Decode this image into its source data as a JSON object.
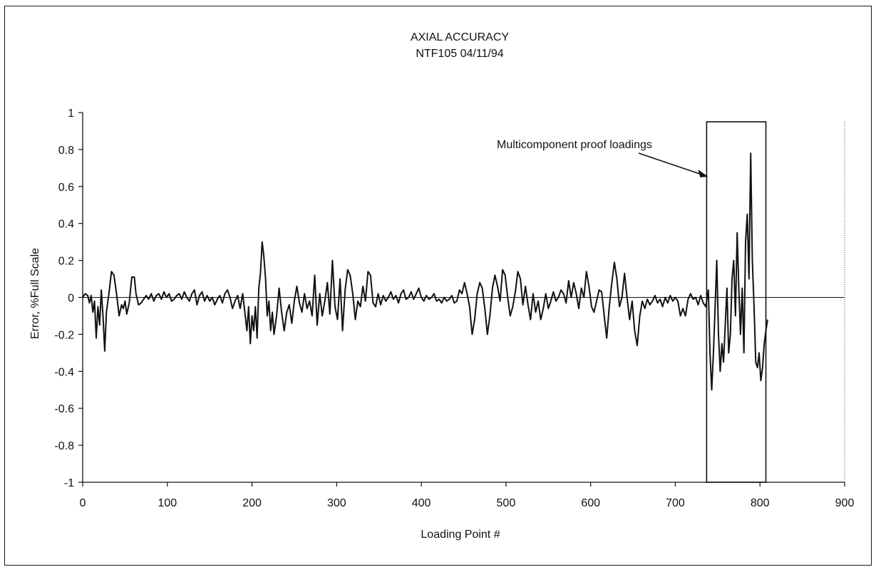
{
  "chart_data": {
    "type": "line",
    "title": "AXIAL ACCURACY",
    "subtitle": "NTF105 04/11/94",
    "xlabel": "Loading Point #",
    "ylabel": "Error, %Full Scale",
    "xlim": [
      0,
      900
    ],
    "ylim": [
      -1,
      1
    ],
    "x_ticks": [
      0,
      100,
      200,
      300,
      400,
      500,
      600,
      700,
      800,
      900
    ],
    "y_ticks": [
      1,
      0.8,
      0.6,
      0.4,
      0.2,
      0,
      -0.2,
      -0.4,
      -0.6,
      -0.8,
      -1
    ],
    "y_tick_labels": [
      "1",
      "0.8",
      "0.6",
      "0.4",
      "0.2",
      "0",
      "-0.2",
      "-0.4",
      "-0.6",
      "-0.8",
      "-1"
    ],
    "grid": false,
    "annotation": {
      "text": "Multicomponent proof loadings",
      "box_x_range": [
        737,
        807
      ],
      "box_y_range": [
        -1,
        0.95
      ]
    },
    "series": [
      {
        "points": [
          [
            0,
            0
          ],
          [
            3,
            0.02
          ],
          [
            6,
            0.01
          ],
          [
            8,
            -0.03
          ],
          [
            10,
            0.01
          ],
          [
            12,
            -0.08
          ],
          [
            14,
            -0.02
          ],
          [
            16,
            -0.22
          ],
          [
            18,
            -0.05
          ],
          [
            20,
            -0.15
          ],
          [
            22,
            0.04
          ],
          [
            24,
            -0.1
          ],
          [
            26,
            -0.29
          ],
          [
            28,
            -0.08
          ],
          [
            31,
            0.02
          ],
          [
            34,
            0.14
          ],
          [
            37,
            0.12
          ],
          [
            40,
            0.02
          ],
          [
            43,
            -0.1
          ],
          [
            46,
            -0.04
          ],
          [
            48,
            -0.06
          ],
          [
            50,
            -0.02
          ],
          [
            52,
            -0.09
          ],
          [
            55,
            -0.03
          ],
          [
            58,
            0.11
          ],
          [
            61,
            0.11
          ],
          [
            63,
            0.02
          ],
          [
            66,
            -0.04
          ],
          [
            69,
            -0.03
          ],
          [
            72,
            -0.01
          ],
          [
            75,
            0.01
          ],
          [
            78,
            -0.01
          ],
          [
            81,
            0.02
          ],
          [
            84,
            -0.02
          ],
          [
            87,
            0.01
          ],
          [
            90,
            0.02
          ],
          [
            93,
            -0.01
          ],
          [
            96,
            0.03
          ],
          [
            99,
            0.0
          ],
          [
            102,
            0.02
          ],
          [
            105,
            -0.02
          ],
          [
            108,
            -0.01
          ],
          [
            111,
            0.01
          ],
          [
            114,
            0.02
          ],
          [
            117,
            -0.01
          ],
          [
            120,
            0.03
          ],
          [
            123,
            0.0
          ],
          [
            126,
            -0.02
          ],
          [
            129,
            0.02
          ],
          [
            132,
            0.04
          ],
          [
            135,
            -0.04
          ],
          [
            138,
            0.01
          ],
          [
            141,
            0.03
          ],
          [
            144,
            -0.02
          ],
          [
            147,
            0.01
          ],
          [
            150,
            -0.02
          ],
          [
            153,
            0.0
          ],
          [
            156,
            -0.04
          ],
          [
            159,
            -0.01
          ],
          [
            162,
            0.01
          ],
          [
            165,
            -0.03
          ],
          [
            168,
            0.02
          ],
          [
            171,
            0.04
          ],
          [
            174,
            0.0
          ],
          [
            177,
            -0.06
          ],
          [
            180,
            -0.02
          ],
          [
            183,
            0.01
          ],
          [
            186,
            -0.06
          ],
          [
            189,
            0.02
          ],
          [
            192,
            -0.1
          ],
          [
            194,
            -0.18
          ],
          [
            196,
            -0.05
          ],
          [
            198,
            -0.25
          ],
          [
            200,
            -0.1
          ],
          [
            202,
            -0.18
          ],
          [
            204,
            -0.05
          ],
          [
            206,
            -0.22
          ],
          [
            208,
            0.05
          ],
          [
            210,
            0.13
          ],
          [
            212,
            0.3
          ],
          [
            214,
            0.22
          ],
          [
            216,
            0.1
          ],
          [
            218,
            -0.1
          ],
          [
            220,
            -0.02
          ],
          [
            222,
            -0.18
          ],
          [
            224,
            -0.08
          ],
          [
            226,
            -0.2
          ],
          [
            229,
            -0.1
          ],
          [
            232,
            0.05
          ],
          [
            235,
            -0.08
          ],
          [
            238,
            -0.18
          ],
          [
            241,
            -0.08
          ],
          [
            244,
            -0.04
          ],
          [
            247,
            -0.14
          ],
          [
            250,
            -0.02
          ],
          [
            253,
            0.06
          ],
          [
            256,
            -0.03
          ],
          [
            259,
            -0.08
          ],
          [
            262,
            0.02
          ],
          [
            265,
            -0.06
          ],
          [
            268,
            -0.02
          ],
          [
            271,
            -0.1
          ],
          [
            274,
            0.12
          ],
          [
            277,
            -0.15
          ],
          [
            280,
            0.02
          ],
          [
            283,
            -0.1
          ],
          [
            286,
            -0.02
          ],
          [
            289,
            0.08
          ],
          [
            292,
            -0.09
          ],
          [
            295,
            0.2
          ],
          [
            298,
            -0.05
          ],
          [
            301,
            -0.12
          ],
          [
            304,
            0.1
          ],
          [
            307,
            -0.18
          ],
          [
            310,
            0.04
          ],
          [
            313,
            0.15
          ],
          [
            316,
            0.12
          ],
          [
            319,
            0.02
          ],
          [
            322,
            -0.12
          ],
          [
            325,
            -0.02
          ],
          [
            328,
            -0.05
          ],
          [
            331,
            0.06
          ],
          [
            334,
            -0.02
          ],
          [
            337,
            0.14
          ],
          [
            340,
            0.12
          ],
          [
            343,
            -0.03
          ],
          [
            346,
            -0.05
          ],
          [
            349,
            0.02
          ],
          [
            352,
            -0.04
          ],
          [
            355,
            0.01
          ],
          [
            358,
            -0.02
          ],
          [
            361,
            0.0
          ],
          [
            364,
            0.03
          ],
          [
            367,
            -0.01
          ],
          [
            370,
            0.01
          ],
          [
            373,
            -0.03
          ],
          [
            376,
            0.02
          ],
          [
            379,
            0.04
          ],
          [
            382,
            -0.01
          ],
          [
            385,
            0.0
          ],
          [
            388,
            0.03
          ],
          [
            391,
            -0.01
          ],
          [
            394,
            0.02
          ],
          [
            397,
            0.05
          ],
          [
            400,
            0.0
          ],
          [
            403,
            -0.02
          ],
          [
            406,
            0.01
          ],
          [
            409,
            -0.01
          ],
          [
            412,
            0.0
          ],
          [
            415,
            0.02
          ],
          [
            418,
            -0.02
          ],
          [
            421,
            -0.01
          ],
          [
            424,
            -0.03
          ],
          [
            427,
            0.0
          ],
          [
            430,
            -0.02
          ],
          [
            433,
            -0.01
          ],
          [
            436,
            0.01
          ],
          [
            439,
            -0.03
          ],
          [
            442,
            -0.02
          ],
          [
            445,
            0.04
          ],
          [
            448,
            0.02
          ],
          [
            451,
            0.08
          ],
          [
            454,
            0.02
          ],
          [
            457,
            -0.05
          ],
          [
            460,
            -0.2
          ],
          [
            463,
            -0.12
          ],
          [
            466,
            0.02
          ],
          [
            469,
            0.08
          ],
          [
            472,
            0.05
          ],
          [
            475,
            -0.06
          ],
          [
            478,
            -0.2
          ],
          [
            481,
            -0.1
          ],
          [
            484,
            0.05
          ],
          [
            487,
            0.12
          ],
          [
            490,
            0.06
          ],
          [
            493,
            -0.02
          ],
          [
            496,
            0.15
          ],
          [
            499,
            0.12
          ],
          [
            502,
            0.0
          ],
          [
            505,
            -0.1
          ],
          [
            508,
            -0.05
          ],
          [
            511,
            0.03
          ],
          [
            514,
            0.14
          ],
          [
            517,
            0.1
          ],
          [
            520,
            -0.04
          ],
          [
            523,
            0.06
          ],
          [
            526,
            -0.04
          ],
          [
            529,
            -0.12
          ],
          [
            532,
            0.02
          ],
          [
            535,
            -0.08
          ],
          [
            538,
            -0.02
          ],
          [
            541,
            -0.12
          ],
          [
            544,
            -0.06
          ],
          [
            547,
            0.02
          ],
          [
            550,
            -0.06
          ],
          [
            553,
            -0.02
          ],
          [
            556,
            0.03
          ],
          [
            559,
            -0.02
          ],
          [
            562,
            0.0
          ],
          [
            565,
            0.04
          ],
          [
            568,
            0.02
          ],
          [
            571,
            -0.03
          ],
          [
            574,
            0.09
          ],
          [
            577,
            0.0
          ],
          [
            580,
            0.08
          ],
          [
            583,
            0.02
          ],
          [
            586,
            -0.06
          ],
          [
            589,
            0.05
          ],
          [
            592,
            0.0
          ],
          [
            595,
            0.14
          ],
          [
            598,
            0.06
          ],
          [
            601,
            -0.05
          ],
          [
            604,
            -0.08
          ],
          [
            607,
            -0.02
          ],
          [
            610,
            0.04
          ],
          [
            613,
            0.03
          ],
          [
            616,
            -0.1
          ],
          [
            619,
            -0.22
          ],
          [
            622,
            -0.05
          ],
          [
            625,
            0.08
          ],
          [
            628,
            0.19
          ],
          [
            631,
            0.1
          ],
          [
            634,
            -0.05
          ],
          [
            637,
            0.0
          ],
          [
            640,
            0.13
          ],
          [
            643,
            0.0
          ],
          [
            646,
            -0.12
          ],
          [
            649,
            -0.02
          ],
          [
            652,
            -0.18
          ],
          [
            655,
            -0.26
          ],
          [
            658,
            -0.1
          ],
          [
            661,
            -0.02
          ],
          [
            664,
            -0.06
          ],
          [
            667,
            -0.01
          ],
          [
            670,
            -0.04
          ],
          [
            673,
            -0.02
          ],
          [
            676,
            0.01
          ],
          [
            679,
            -0.03
          ],
          [
            682,
            -0.01
          ],
          [
            685,
            -0.05
          ],
          [
            688,
            0.0
          ],
          [
            691,
            -0.03
          ],
          [
            694,
            0.01
          ],
          [
            697,
            -0.02
          ],
          [
            700,
            0.0
          ],
          [
            703,
            -0.02
          ],
          [
            706,
            -0.1
          ],
          [
            709,
            -0.06
          ],
          [
            712,
            -0.1
          ],
          [
            715,
            -0.01
          ],
          [
            718,
            0.02
          ],
          [
            721,
            -0.01
          ],
          [
            724,
            0.0
          ],
          [
            727,
            -0.04
          ],
          [
            730,
            0.01
          ],
          [
            733,
            -0.03
          ],
          [
            736,
            -0.05
          ],
          [
            739,
            0.04
          ],
          [
            741,
            -0.3
          ],
          [
            743,
            -0.5
          ],
          [
            745,
            -0.3
          ],
          [
            747,
            -0.05
          ],
          [
            749,
            0.2
          ],
          [
            751,
            -0.2
          ],
          [
            753,
            -0.4
          ],
          [
            755,
            -0.25
          ],
          [
            757,
            -0.35
          ],
          [
            759,
            -0.15
          ],
          [
            761,
            0.05
          ],
          [
            763,
            -0.3
          ],
          [
            765,
            -0.2
          ],
          [
            767,
            0.1
          ],
          [
            769,
            0.2
          ],
          [
            771,
            -0.1
          ],
          [
            773,
            0.35
          ],
          [
            775,
            0.05
          ],
          [
            777,
            -0.2
          ],
          [
            779,
            0.05
          ],
          [
            781,
            -0.3
          ],
          [
            783,
            0.3
          ],
          [
            785,
            0.45
          ],
          [
            787,
            0.1
          ],
          [
            789,
            0.78
          ],
          [
            791,
            0.2
          ],
          [
            793,
            -0.05
          ],
          [
            795,
            -0.35
          ],
          [
            797,
            -0.38
          ],
          [
            799,
            -0.3
          ],
          [
            801,
            -0.45
          ],
          [
            803,
            -0.38
          ],
          [
            805,
            -0.25
          ],
          [
            807,
            -0.18
          ],
          [
            809,
            -0.12
          ]
        ]
      }
    ]
  }
}
